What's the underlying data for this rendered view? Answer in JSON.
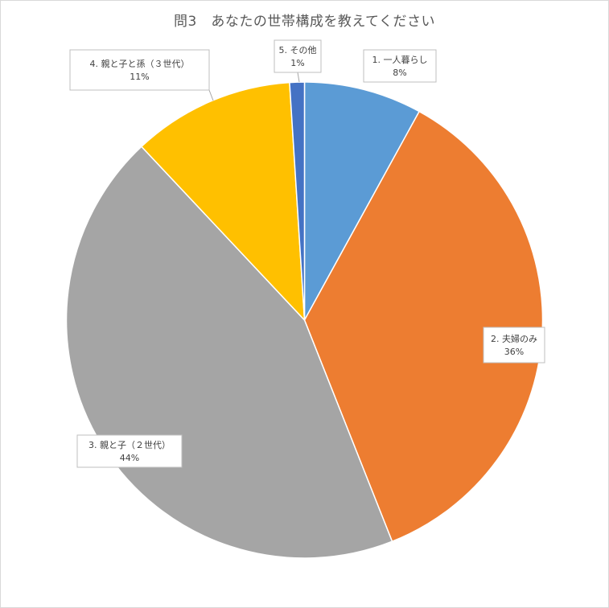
{
  "chart_data": {
    "type": "pie",
    "title": "問3　あなたの世帯構成を教えてください",
    "slices": [
      {
        "label": "1. 一人暮らし",
        "value": 8,
        "percent_label": "8%",
        "color": "#5B9BD5"
      },
      {
        "label": "2. 夫婦のみ",
        "value": 36,
        "percent_label": "36%",
        "color": "#ED7D31"
      },
      {
        "label": "3. 親と子（２世代）",
        "value": 44,
        "percent_label": "44%",
        "color": "#A5A5A5"
      },
      {
        "label": "4. 親と子と孫（３世代）",
        "value": 11,
        "percent_label": "11%",
        "color": "#FFC000"
      },
      {
        "label": "5. その他",
        "value": 1,
        "percent_label": "1%",
        "color": "#4472C4"
      }
    ],
    "legend": "none",
    "data_labels": "callouts"
  }
}
